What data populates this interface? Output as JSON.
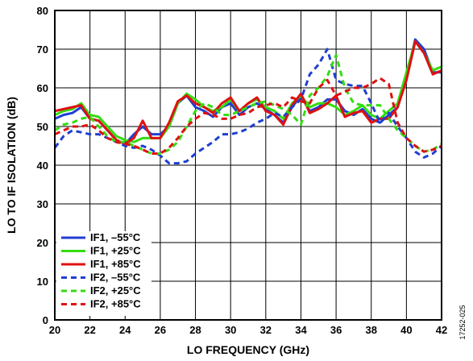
{
  "chart_data": {
    "type": "line",
    "xlabel": "LO FREQUENCY (GHz)",
    "ylabel": "LO TO IF ISOLATION (dB)",
    "xlim": [
      20,
      42
    ],
    "ylim": [
      0,
      80
    ],
    "xticks": [
      "20",
      "22",
      "24",
      "26",
      "28",
      "30",
      "32",
      "34",
      "36",
      "38",
      "40",
      "42"
    ],
    "yticks": [
      "0",
      "10",
      "20",
      "30",
      "40",
      "50",
      "60",
      "70",
      "80"
    ],
    "grid": true,
    "legend_position": "bottom-left",
    "figure_id": "17252-025",
    "series": [
      {
        "name": "IF1, –55°C",
        "color": "#1f3fd1",
        "dash": "solid",
        "x": [
          20,
          20.5,
          21,
          21.5,
          22,
          22.5,
          23,
          23.5,
          24,
          24.5,
          25,
          25.5,
          26,
          26.5,
          27,
          27.5,
          28,
          28.5,
          29,
          29.5,
          30,
          30.5,
          31,
          31.5,
          32,
          32.5,
          33,
          33.5,
          34,
          34.5,
          35,
          35.5,
          36,
          36.5,
          37,
          37.5,
          38,
          38.5,
          39,
          39.5,
          40,
          40.5,
          41,
          41.5,
          42
        ],
        "y": [
          52,
          53,
          53.5,
          55,
          52,
          51.5,
          49,
          46.5,
          45.5,
          48,
          50,
          48,
          48,
          50,
          56,
          58,
          55,
          54,
          52.5,
          55,
          56,
          53,
          55,
          56,
          54.5,
          53,
          51,
          55,
          58,
          54,
          55,
          57,
          57,
          54,
          53,
          54.5,
          52,
          51,
          53,
          55,
          63,
          72.5,
          70,
          64,
          64
        ]
      },
      {
        "name": "IF1, +25°C",
        "color": "#33dd11",
        "dash": "solid",
        "x": [
          20,
          20.5,
          21,
          21.5,
          22,
          22.5,
          23,
          23.5,
          24,
          24.5,
          25,
          25.5,
          26,
          26.5,
          27,
          27.5,
          28,
          28.5,
          29,
          29.5,
          30,
          30.5,
          31,
          31.5,
          32,
          32.5,
          33,
          33.5,
          34,
          34.5,
          35,
          35.5,
          36,
          36.5,
          37,
          37.5,
          38,
          38.5,
          39,
          39.5,
          40,
          40.5,
          41,
          41.5,
          42
        ],
        "y": [
          53,
          54,
          54.5,
          56,
          53,
          52.5,
          50,
          47.5,
          46.5,
          46,
          47,
          47,
          47,
          50,
          56,
          58.5,
          57,
          55,
          54,
          55,
          57,
          54,
          56,
          57,
          55,
          54,
          52,
          56,
          58,
          55,
          56,
          56,
          55,
          53,
          54,
          55.5,
          53,
          52,
          54,
          56,
          64,
          72,
          69,
          64.5,
          65.5
        ]
      },
      {
        "name": "IF1, +85°C",
        "color": "#e01010",
        "dash": "solid",
        "x": [
          20,
          20.5,
          21,
          21.5,
          22,
          22.5,
          23,
          23.5,
          24,
          24.5,
          25,
          25.5,
          26,
          26.5,
          27,
          27.5,
          28,
          28.5,
          29,
          29.5,
          30,
          30.5,
          31,
          31.5,
          32,
          32.5,
          33,
          33.5,
          34,
          34.5,
          35,
          35.5,
          36,
          36.5,
          37,
          37.5,
          38,
          38.5,
          39,
          39.5,
          40,
          40.5,
          41,
          41.5,
          42
        ],
        "y": [
          54,
          54.5,
          55,
          55.5,
          52,
          51.5,
          49,
          46.5,
          45.5,
          47,
          51.5,
          47,
          47,
          51,
          56.5,
          58,
          56,
          55,
          53.5,
          56,
          57.5,
          54,
          56,
          57.5,
          54,
          53,
          50.5,
          55.5,
          58.5,
          53.5,
          54.5,
          56,
          58,
          52.5,
          53.5,
          54,
          51,
          52,
          52,
          55,
          62,
          72,
          69,
          63.5,
          64.5
        ]
      },
      {
        "name": "IF2, –55°C",
        "color": "#1f3fd1",
        "dash": "dashed",
        "x": [
          20,
          20.5,
          21,
          21.5,
          22,
          22.5,
          23,
          23.5,
          24,
          24.5,
          25,
          25.5,
          26,
          26.5,
          27,
          27.5,
          28,
          28.5,
          29,
          29.5,
          30,
          30.5,
          31,
          31.5,
          32,
          32.5,
          33,
          33.5,
          34,
          34.5,
          35,
          35.5,
          36,
          36.5,
          37,
          37.5,
          38,
          38.5,
          39,
          39.5,
          40,
          40.5,
          41,
          41.5,
          42
        ],
        "y": [
          44.5,
          47.5,
          49,
          48.5,
          48,
          48,
          47,
          46,
          45,
          44.5,
          45,
          44,
          42.5,
          40.5,
          40.5,
          41,
          43,
          44.5,
          46,
          48,
          48,
          48.5,
          49.5,
          51,
          52,
          53.5,
          52.5,
          55,
          57,
          63.5,
          66,
          70,
          62,
          61,
          60.5,
          60.5,
          56,
          51,
          53.5,
          50,
          47,
          43.5,
          42,
          43,
          45
        ]
      },
      {
        "name": "IF2, +25°C",
        "color": "#33dd11",
        "dash": "dashed",
        "x": [
          20,
          20.5,
          21,
          21.5,
          22,
          22.5,
          23,
          23.5,
          24,
          24.5,
          25,
          25.5,
          26,
          26.5,
          27,
          27.5,
          28,
          28.5,
          29,
          29.5,
          30,
          30.5,
          31,
          31.5,
          32,
          32.5,
          33,
          33.5,
          34,
          34.5,
          35,
          35.5,
          36,
          36.5,
          37,
          37.5,
          38,
          38.5,
          39,
          39.5,
          40,
          40.5,
          41,
          41.5,
          42
        ],
        "y": [
          49,
          50.5,
          51,
          52,
          52.5,
          50,
          47.5,
          46,
          46,
          45,
          44,
          43,
          43,
          44,
          46,
          50,
          54,
          56,
          55,
          53,
          53,
          54,
          55,
          56,
          56.5,
          55.5,
          54.5,
          53,
          50.5,
          58,
          60,
          63,
          68.5,
          60,
          56,
          55.5,
          55.5,
          55.5,
          52,
          49,
          47,
          45,
          43.5,
          44,
          45.5
        ]
      },
      {
        "name": "IF2, +85°C",
        "color": "#e01010",
        "dash": "dashed",
        "x": [
          20,
          20.5,
          21,
          21.5,
          22,
          22.5,
          23,
          23.5,
          24,
          24.5,
          25,
          25.5,
          26,
          26.5,
          27,
          27.5,
          28,
          28.5,
          29,
          29.5,
          30,
          30.5,
          31,
          31.5,
          32,
          32.5,
          33,
          33.5,
          34,
          34.5,
          35,
          35.5,
          36,
          36.5,
          37,
          37.5,
          38,
          38.5,
          39,
          39.5,
          40,
          40.5,
          41,
          41.5,
          42
        ],
        "y": [
          48,
          49,
          50,
          50,
          50.5,
          49,
          47,
          46,
          45.5,
          45,
          44,
          43,
          43,
          44.5,
          47,
          50,
          52,
          53.5,
          53,
          52,
          52,
          53,
          53.5,
          55,
          55.5,
          56,
          55,
          57.5,
          56.5,
          56,
          60,
          62,
          58,
          59,
          60,
          60,
          61,
          62.5,
          61,
          51,
          47,
          45,
          43.5,
          44,
          45
        ]
      }
    ]
  }
}
